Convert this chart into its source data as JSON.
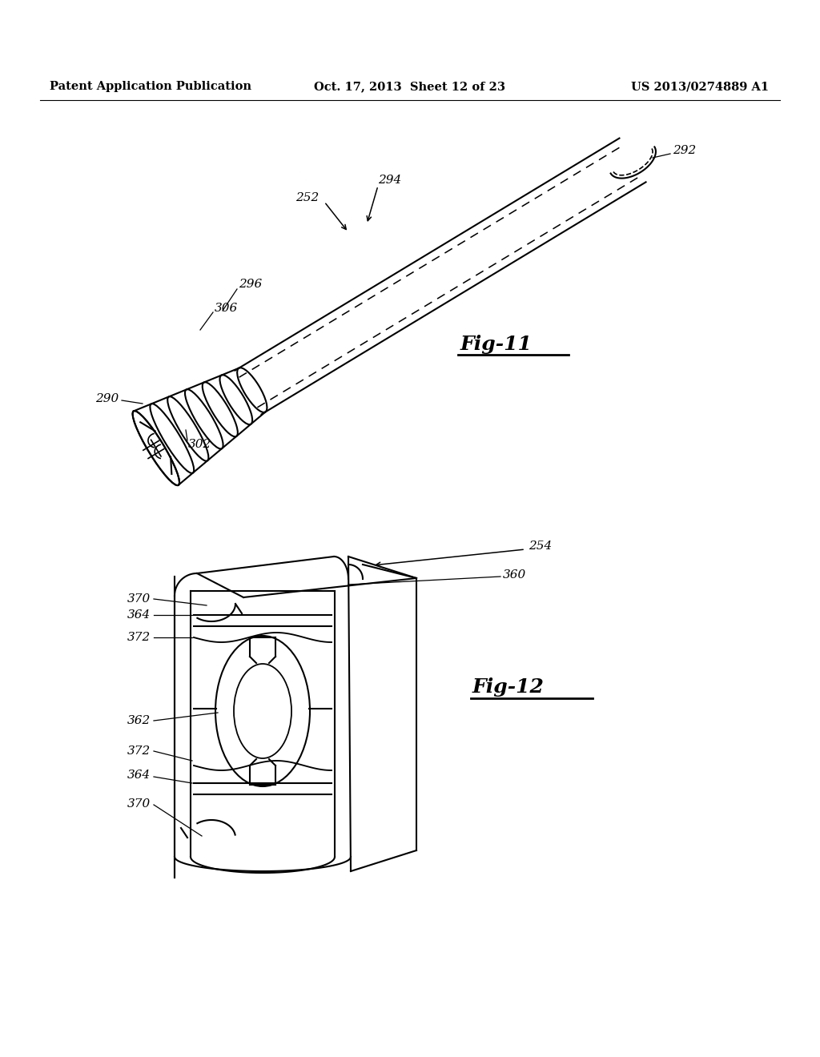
{
  "background_color": "#ffffff",
  "header_left": "Patent Application Publication",
  "header_center": "Oct. 17, 2013  Sheet 12 of 23",
  "header_right": "US 2013/0274889 A1",
  "fig11_label": "Fig-11",
  "fig12_label": "Fig-12",
  "line_color": "#000000",
  "text_color": "#000000",
  "header_fontsize": 10.5,
  "annot_fontsize": 11,
  "figlabel_fontsize": 18
}
